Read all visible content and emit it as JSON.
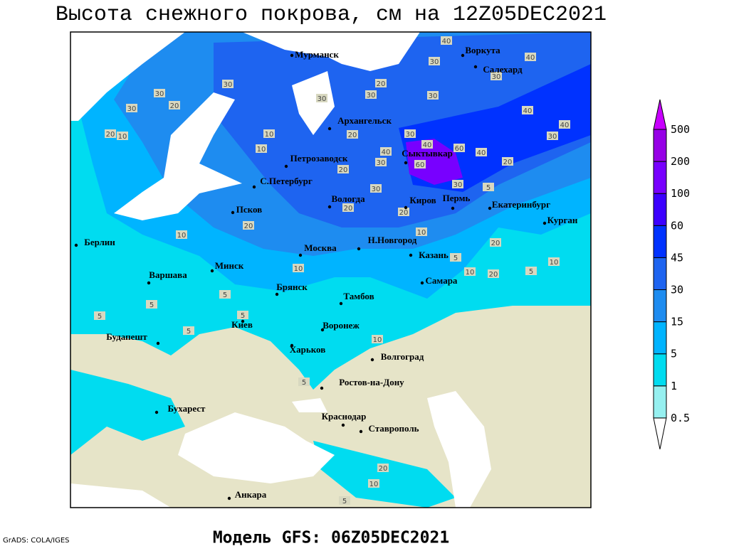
{
  "title": "Высота снежного покрова, см на 12Z05DEC2021",
  "subtitle": "Модель GFS: 06Z05DEC2021",
  "credit": "GrADS: COLA/IGES",
  "colorbar": {
    "levels": [
      0.5,
      1,
      5,
      15,
      30,
      45,
      60,
      100,
      200,
      500
    ],
    "colors": [
      "#ffffff",
      "#96f0f0",
      "#00dcf0",
      "#00b4ff",
      "#1e8cf0",
      "#1e64f0",
      "#0032ff",
      "#3c00ff",
      "#7800ff",
      "#9600e6",
      "#c800ff"
    ]
  },
  "cities": [
    "Мурманск",
    "Воркута",
    "Салехард",
    "Архангельск",
    "Сыктывкар",
    "Петрозаводск",
    "С.Петербург",
    "Вологда",
    "Киров",
    "Пермь",
    "Екатеринбург",
    "Курган",
    "Псков",
    "Берлин",
    "Москва",
    "Н.Новгород",
    "Казань",
    "Минск",
    "Варшава",
    "Самара",
    "Брянск",
    "Тамбов",
    "Киев",
    "Воронеж",
    "Будапешт",
    "Харьков",
    "Волгоград",
    "Ростов-на-Дону",
    "Бухарест",
    "Краснодар",
    "Ставрополь",
    "Анкара"
  ],
  "contour_labels": [
    40,
    30,
    40,
    30,
    30,
    30,
    30,
    20,
    20,
    10,
    30,
    30,
    30,
    20,
    40,
    40,
    30,
    20,
    30,
    40,
    40,
    60,
    40,
    20,
    20,
    30,
    60,
    30,
    5,
    30,
    20,
    20,
    10,
    10,
    5,
    20,
    10,
    20,
    10,
    5,
    10,
    5,
    5,
    5,
    5,
    5,
    10,
    5,
    20,
    5,
    10,
    10,
    10,
    20
  ]
}
